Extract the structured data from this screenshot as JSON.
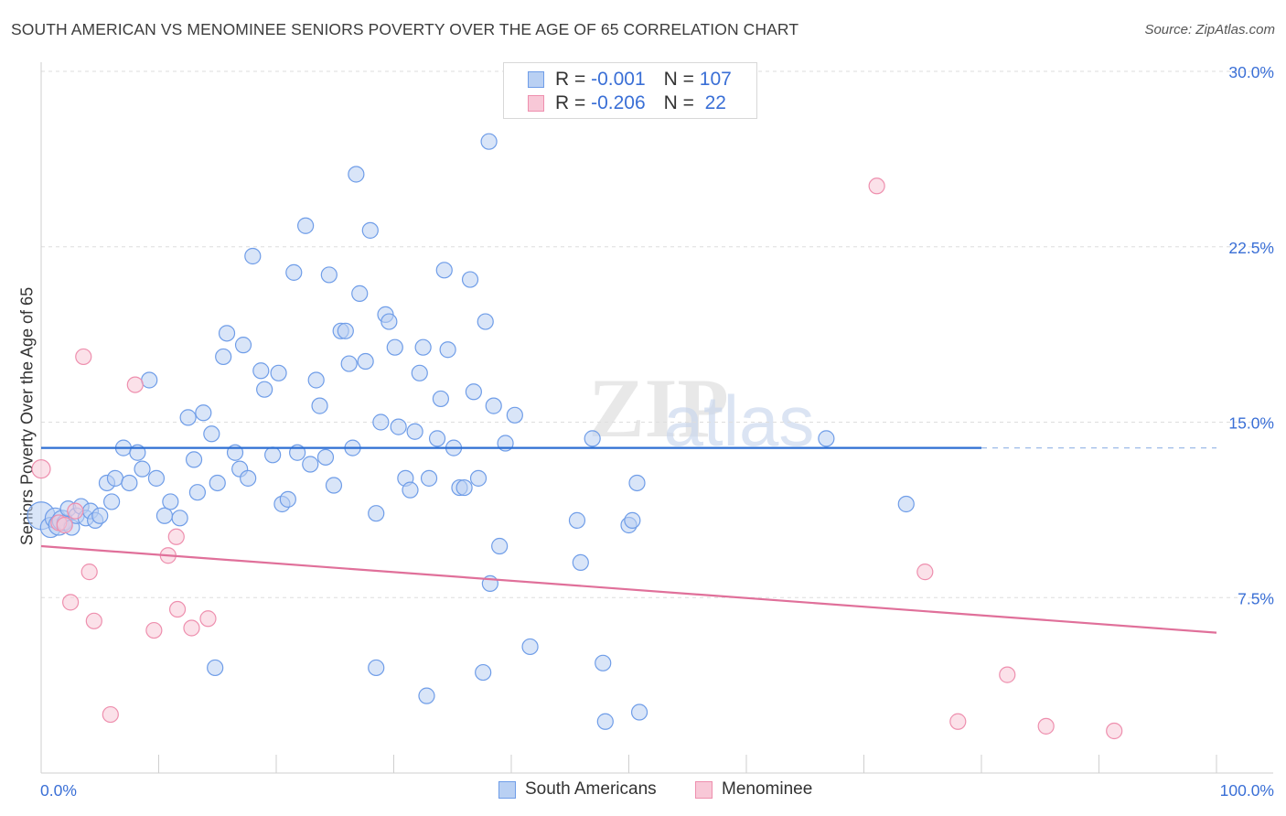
{
  "title": "SOUTH AMERICAN VS MENOMINEE SENIORS POVERTY OVER THE AGE OF 65 CORRELATION CHART",
  "source": "Source: ZipAtlas.com",
  "watermark": {
    "zip": "ZIP",
    "atlas": "atlas"
  },
  "legend": {
    "rows": [
      {
        "r_label": "R = ",
        "r_value": "-0.001",
        "n_label": "N = ",
        "n_value": "107",
        "color": "#6f9de8",
        "fill": "#b9d0f3"
      },
      {
        "r_label": "R = ",
        "r_value": "-0.206",
        "n_label": "N = ",
        "n_value": " 22",
        "color": "#ee8fae",
        "fill": "#f8c8d7"
      }
    ]
  },
  "bottom_legend": [
    "South Americans",
    "Menominee"
  ],
  "chart_data": {
    "type": "scatter",
    "title": "SOUTH AMERICAN VS MENOMINEE SENIORS POVERTY OVER THE AGE OF 65 CORRELATION CHART",
    "xlabel": "",
    "ylabel": "Seniors Poverty Over the Age of 65",
    "xlim": [
      0,
      100
    ],
    "ylim": [
      0,
      30
    ],
    "x_tick_labels": [
      "0.0%",
      "100.0%"
    ],
    "y_ticks": [
      7.5,
      15.0,
      22.5,
      30.0
    ],
    "y_tick_labels": [
      "7.5%",
      "15.0%",
      "22.5%",
      "30.0%"
    ],
    "grid": true,
    "legend_position": "top-center",
    "series": [
      {
        "name": "South Americans",
        "color": "#6f9de8",
        "fill": "#b9d0f3",
        "regression": {
          "x_start": 0,
          "y_start": 13.9,
          "x_end": 80,
          "y_end": 13.9,
          "dashed_to": 100
        },
        "points": [
          [
            0,
            11.0
          ],
          [
            0.8,
            10.5
          ],
          [
            1.2,
            10.9
          ],
          [
            1.5,
            10.6
          ],
          [
            1.8,
            10.8
          ],
          [
            2.0,
            10.7
          ],
          [
            2.3,
            11.3
          ],
          [
            2.6,
            10.5
          ],
          [
            3.0,
            11.0
          ],
          [
            3.4,
            11.4
          ],
          [
            3.8,
            10.9
          ],
          [
            4.2,
            11.2
          ],
          [
            4.6,
            10.8
          ],
          [
            5.0,
            11.0
          ],
          [
            5.6,
            12.4
          ],
          [
            6.0,
            11.6
          ],
          [
            6.3,
            12.6
          ],
          [
            7.0,
            13.9
          ],
          [
            7.5,
            12.4
          ],
          [
            8.2,
            13.7
          ],
          [
            8.6,
            13.0
          ],
          [
            9.2,
            16.8
          ],
          [
            9.8,
            12.6
          ],
          [
            10.5,
            11.0
          ],
          [
            11.0,
            11.6
          ],
          [
            11.8,
            10.9
          ],
          [
            12.5,
            15.2
          ],
          [
            13.0,
            13.4
          ],
          [
            13.3,
            12.0
          ],
          [
            13.8,
            15.4
          ],
          [
            14.5,
            14.5
          ],
          [
            15.0,
            12.4
          ],
          [
            15.5,
            17.8
          ],
          [
            15.8,
            18.8
          ],
          [
            16.5,
            13.7
          ],
          [
            16.9,
            13.0
          ],
          [
            17.2,
            18.3
          ],
          [
            17.6,
            12.6
          ],
          [
            18.0,
            22.1
          ],
          [
            18.7,
            17.2
          ],
          [
            19.0,
            16.4
          ],
          [
            19.7,
            13.6
          ],
          [
            20.2,
            17.1
          ],
          [
            20.5,
            11.5
          ],
          [
            21.0,
            11.7
          ],
          [
            21.5,
            21.4
          ],
          [
            21.8,
            13.7
          ],
          [
            22.5,
            23.4
          ],
          [
            22.9,
            13.2
          ],
          [
            23.4,
            16.8
          ],
          [
            23.7,
            15.7
          ],
          [
            24.2,
            13.5
          ],
          [
            24.5,
            21.3
          ],
          [
            24.9,
            12.3
          ],
          [
            25.5,
            18.9
          ],
          [
            25.9,
            18.9
          ],
          [
            26.2,
            17.5
          ],
          [
            26.5,
            13.9
          ],
          [
            26.8,
            25.6
          ],
          [
            27.1,
            20.5
          ],
          [
            27.6,
            17.6
          ],
          [
            28.0,
            23.2
          ],
          [
            28.5,
            11.1
          ],
          [
            28.9,
            15.0
          ],
          [
            29.3,
            19.6
          ],
          [
            29.6,
            19.3
          ],
          [
            30.1,
            18.2
          ],
          [
            30.4,
            14.8
          ],
          [
            31.0,
            12.6
          ],
          [
            31.4,
            12.1
          ],
          [
            31.8,
            14.6
          ],
          [
            32.2,
            17.1
          ],
          [
            32.5,
            18.2
          ],
          [
            33.0,
            12.6
          ],
          [
            33.7,
            14.3
          ],
          [
            34.0,
            16.0
          ],
          [
            34.3,
            21.5
          ],
          [
            34.6,
            18.1
          ],
          [
            35.1,
            13.9
          ],
          [
            35.6,
            12.2
          ],
          [
            36.0,
            12.2
          ],
          [
            36.5,
            21.1
          ],
          [
            36.8,
            16.3
          ],
          [
            37.2,
            12.6
          ],
          [
            37.8,
            19.3
          ],
          [
            38.1,
            27.0
          ],
          [
            38.5,
            15.7
          ],
          [
            39.0,
            9.7
          ],
          [
            39.5,
            14.1
          ],
          [
            40.3,
            15.3
          ],
          [
            14.8,
            4.5
          ],
          [
            28.5,
            4.5
          ],
          [
            32.8,
            3.3
          ],
          [
            37.6,
            4.3
          ],
          [
            38.2,
            8.1
          ],
          [
            41.6,
            5.4
          ],
          [
            45.6,
            10.8
          ],
          [
            45.9,
            9.0
          ],
          [
            47.8,
            4.7
          ],
          [
            48.0,
            2.2
          ],
          [
            50.0,
            10.6
          ],
          [
            50.3,
            10.8
          ],
          [
            50.7,
            12.4
          ],
          [
            50.9,
            2.6
          ],
          [
            66.8,
            14.3
          ],
          [
            73.6,
            11.5
          ],
          [
            46.9,
            14.3
          ]
        ]
      },
      {
        "name": "Menominee",
        "color": "#ee8fae",
        "fill": "#f8c8d7",
        "regression": {
          "x_start": 0,
          "y_start": 9.7,
          "x_end": 100,
          "y_end": 6.0
        },
        "points": [
          [
            0,
            13.0
          ],
          [
            1.5,
            10.7
          ],
          [
            2.0,
            10.6
          ],
          [
            2.5,
            7.3
          ],
          [
            2.9,
            11.2
          ],
          [
            3.6,
            17.8
          ],
          [
            4.1,
            8.6
          ],
          [
            4.5,
            6.5
          ],
          [
            5.9,
            2.5
          ],
          [
            8.0,
            16.6
          ],
          [
            9.6,
            6.1
          ],
          [
            10.8,
            9.3
          ],
          [
            11.5,
            10.1
          ],
          [
            11.6,
            7.0
          ],
          [
            12.8,
            6.2
          ],
          [
            14.2,
            6.6
          ],
          [
            71.1,
            25.1
          ],
          [
            75.2,
            8.6
          ],
          [
            78.0,
            2.2
          ],
          [
            82.2,
            4.2
          ],
          [
            85.5,
            2.0
          ],
          [
            91.3,
            1.8
          ]
        ]
      }
    ]
  }
}
